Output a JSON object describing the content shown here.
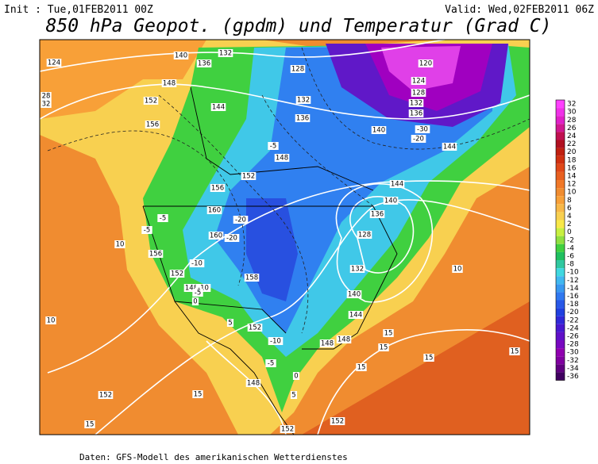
{
  "header": {
    "init": "Init : Tue,01FEB2011 00Z",
    "valid": "Valid: Wed,02FEB2011 06Z"
  },
  "title": "850 hPa Geopot. (gpdm) und Temperatur (Grad C)",
  "colorbar": {
    "labels": [
      "32",
      "30",
      "28",
      "26",
      "24",
      "22",
      "20",
      "18",
      "16",
      "14",
      "12",
      "10",
      "8",
      "6",
      "4",
      "2",
      "0",
      "-2",
      "-4",
      "-6",
      "-8",
      "-10",
      "-12",
      "-14",
      "-16",
      "-18",
      "-20",
      "-22",
      "-24",
      "-26",
      "-28",
      "-30",
      "-32",
      "-34",
      "-36"
    ],
    "colors": [
      "#ff40ff",
      "#f030e8",
      "#e020c8",
      "#d01890",
      "#c01050",
      "#b01020",
      "#c02010",
      "#d03010",
      "#e04818",
      "#e86020",
      "#f07828",
      "#f08c30",
      "#f8a038",
      "#f8b848",
      "#f8d050",
      "#f8e848",
      "#c8f040",
      "#90e040",
      "#40d040",
      "#20c060",
      "#30c8a0",
      "#40d8e0",
      "#40b8f0",
      "#3898f0",
      "#3078f0",
      "#2858e8",
      "#2040e0",
      "#3028d8",
      "#4818d0",
      "#6010c8",
      "#7808c0",
      "#9000b0",
      "#8000a0",
      "#600080",
      "#400060"
    ]
  },
  "contour_labels": [
    "124",
    "140",
    "132",
    "136",
    "148",
    "152",
    "156",
    "144",
    "128",
    "132",
    "136",
    "140",
    "144",
    "120",
    "124",
    "128",
    "132",
    "136",
    "148",
    "152",
    "156",
    "160",
    "160",
    "144",
    "140",
    "136",
    "128",
    "132",
    "140",
    "144",
    "148",
    "148",
    "152",
    "152",
    "148",
    "156",
    "158",
    "148",
    "152",
    "152",
    "152",
    "-20",
    "-20",
    "-10",
    "-10",
    "-5",
    "-5",
    "-5",
    "-5",
    "-5",
    "0",
    "0",
    "5",
    "5",
    "10",
    "10",
    "15",
    "15",
    "15",
    "15",
    "15",
    "15",
    "15",
    "-20",
    "-30",
    "-10",
    "28",
    "32",
    "10"
  ],
  "footer": "Daten: GFS-Modell des amerikanischen Wetterdienstes"
}
